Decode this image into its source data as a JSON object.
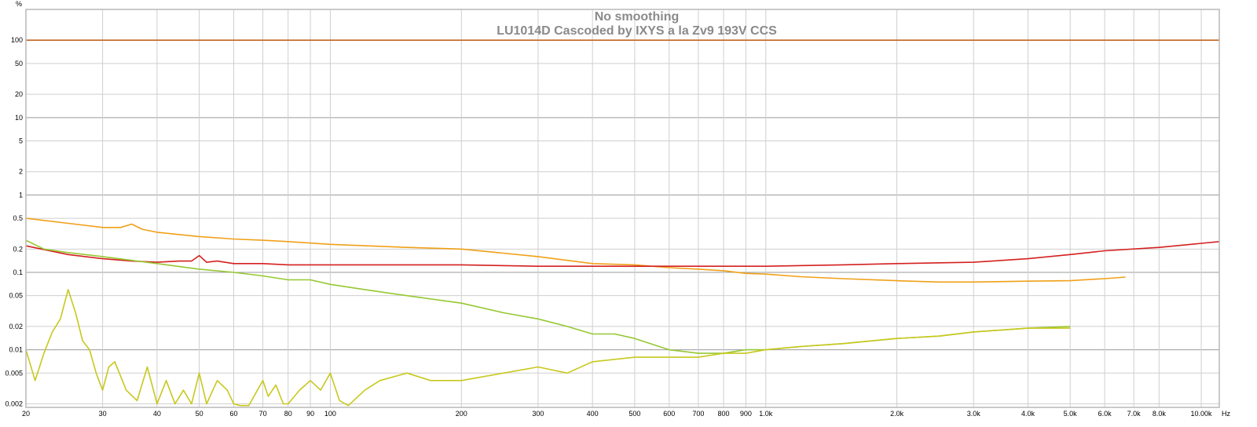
{
  "chart_data": {
    "type": "line",
    "title": "No smoothing",
    "subtitle": "LU1014D Cascoded by IXYS a la Zv9 193V CCS",
    "yunit": "%",
    "xunit": "Hz",
    "xscale": "log",
    "yscale": "log",
    "xlim": [
      20,
      11000
    ],
    "ylim": [
      0.0018,
      250
    ],
    "grid": true,
    "x_ticks": [
      {
        "value": 20,
        "label": "20"
      },
      {
        "value": 30,
        "label": "30"
      },
      {
        "value": 40,
        "label": "40"
      },
      {
        "value": 50,
        "label": "50"
      },
      {
        "value": 60,
        "label": "60"
      },
      {
        "value": 70,
        "label": "70"
      },
      {
        "value": 80,
        "label": "80"
      },
      {
        "value": 90,
        "label": "90"
      },
      {
        "value": 100,
        "label": "100"
      },
      {
        "value": 200,
        "label": "200"
      },
      {
        "value": 300,
        "label": "300"
      },
      {
        "value": 400,
        "label": "400"
      },
      {
        "value": 500,
        "label": "500"
      },
      {
        "value": 600,
        "label": "600"
      },
      {
        "value": 700,
        "label": "700"
      },
      {
        "value": 800,
        "label": "800"
      },
      {
        "value": 900,
        "label": "900"
      },
      {
        "value": 1000,
        "label": "1.0k"
      },
      {
        "value": 2000,
        "label": "2.0k"
      },
      {
        "value": 3000,
        "label": "3.0k"
      },
      {
        "value": 4000,
        "label": "4.0k"
      },
      {
        "value": 5000,
        "label": "5.0k"
      },
      {
        "value": 6000,
        "label": "6.0k"
      },
      {
        "value": 7000,
        "label": "7.0k"
      },
      {
        "value": 8000,
        "label": "8.0k"
      },
      {
        "value": 10000,
        "label": "10.00k"
      }
    ],
    "y_ticks": [
      {
        "value": 100,
        "label": "100"
      },
      {
        "value": 50,
        "label": "50"
      },
      {
        "value": 20,
        "label": "20"
      },
      {
        "value": 10,
        "label": "10"
      },
      {
        "value": 5,
        "label": "5"
      },
      {
        "value": 2,
        "label": "2"
      },
      {
        "value": 1,
        "label": "1"
      },
      {
        "value": 0.5,
        "label": "0.5"
      },
      {
        "value": 0.2,
        "label": "0.2"
      },
      {
        "value": 0.1,
        "label": "0.1"
      },
      {
        "value": 0.05,
        "label": "0.05"
      },
      {
        "value": 0.02,
        "label": "0.02"
      },
      {
        "value": 0.01,
        "label": "0.01"
      },
      {
        "value": 0.005,
        "label": "0.005"
      },
      {
        "value": 0.002,
        "label": "0.002"
      }
    ],
    "series": [
      {
        "color": "#c4651e",
        "x": [
          20,
          11000
        ],
        "values": [
          100,
          100
        ]
      },
      {
        "color": "#f0a018",
        "x": [
          20,
          25,
          30,
          33,
          35,
          37,
          40,
          50,
          60,
          70,
          80,
          100,
          150,
          200,
          300,
          400,
          500,
          600,
          700,
          800,
          900,
          1000,
          1200,
          1500,
          2000,
          2500,
          3000,
          4000,
          5000,
          6000,
          6700
        ],
        "values": [
          0.5,
          0.43,
          0.38,
          0.38,
          0.42,
          0.36,
          0.33,
          0.29,
          0.27,
          0.26,
          0.25,
          0.23,
          0.21,
          0.2,
          0.16,
          0.13,
          0.125,
          0.115,
          0.11,
          0.105,
          0.097,
          0.095,
          0.088,
          0.083,
          0.078,
          0.075,
          0.075,
          0.077,
          0.078,
          0.083,
          0.087
        ]
      },
      {
        "color": "#d42020",
        "x": [
          20,
          25,
          30,
          35,
          40,
          45,
          48,
          50,
          52,
          55,
          60,
          70,
          80,
          100,
          150,
          200,
          300,
          400,
          500,
          600,
          700,
          1000,
          1500,
          2000,
          3000,
          4000,
          5000,
          6000,
          8000,
          11000
        ],
        "values": [
          0.22,
          0.17,
          0.15,
          0.14,
          0.135,
          0.14,
          0.14,
          0.165,
          0.135,
          0.14,
          0.13,
          0.13,
          0.125,
          0.125,
          0.125,
          0.125,
          0.12,
          0.12,
          0.12,
          0.12,
          0.12,
          0.12,
          0.125,
          0.13,
          0.135,
          0.15,
          0.17,
          0.19,
          0.21,
          0.25
        ]
      },
      {
        "color": "#96c832",
        "x": [
          20,
          22,
          25,
          30,
          40,
          50,
          60,
          70,
          80,
          90,
          100,
          120,
          150,
          200,
          250,
          300,
          350,
          400,
          450,
          500,
          600,
          700,
          800,
          900,
          1000,
          1200,
          1500,
          2000,
          2500,
          3000,
          4000,
          5000
        ],
        "values": [
          0.26,
          0.2,
          0.18,
          0.16,
          0.13,
          0.11,
          0.1,
          0.09,
          0.08,
          0.08,
          0.07,
          0.06,
          0.05,
          0.04,
          0.03,
          0.025,
          0.02,
          0.016,
          0.016,
          0.014,
          0.01,
          0.009,
          0.009,
          0.01,
          0.01,
          0.011,
          0.012,
          0.014,
          0.015,
          0.017,
          0.019,
          0.02
        ]
      },
      {
        "color": "#c8c81e",
        "x": [
          20,
          21,
          22,
          23,
          24,
          25,
          26,
          27,
          28,
          29,
          30,
          31,
          32,
          34,
          36,
          38,
          40,
          42,
          44,
          46,
          48,
          50,
          52,
          55,
          58,
          60,
          62,
          65,
          68,
          70,
          72,
          75,
          78,
          80,
          85,
          90,
          95,
          100,
          105,
          110,
          120,
          130,
          150,
          170,
          200,
          250,
          300,
          350,
          400,
          500,
          600,
          700,
          800,
          900,
          1000,
          1200,
          1500,
          2000,
          2500,
          3000,
          4000,
          5000
        ],
        "values": [
          0.01,
          0.004,
          0.009,
          0.017,
          0.025,
          0.06,
          0.03,
          0.013,
          0.01,
          0.005,
          0.003,
          0.006,
          0.007,
          0.003,
          0.0022,
          0.006,
          0.002,
          0.004,
          0.002,
          0.003,
          0.002,
          0.005,
          0.002,
          0.004,
          0.003,
          0.002,
          0.0019,
          0.0019,
          0.003,
          0.004,
          0.0025,
          0.0035,
          0.002,
          0.002,
          0.003,
          0.004,
          0.003,
          0.005,
          0.0022,
          0.0019,
          0.003,
          0.004,
          0.005,
          0.004,
          0.004,
          0.005,
          0.006,
          0.005,
          0.007,
          0.008,
          0.008,
          0.008,
          0.009,
          0.009,
          0.01,
          0.011,
          0.012,
          0.014,
          0.015,
          0.017,
          0.019,
          0.019
        ]
      }
    ]
  }
}
